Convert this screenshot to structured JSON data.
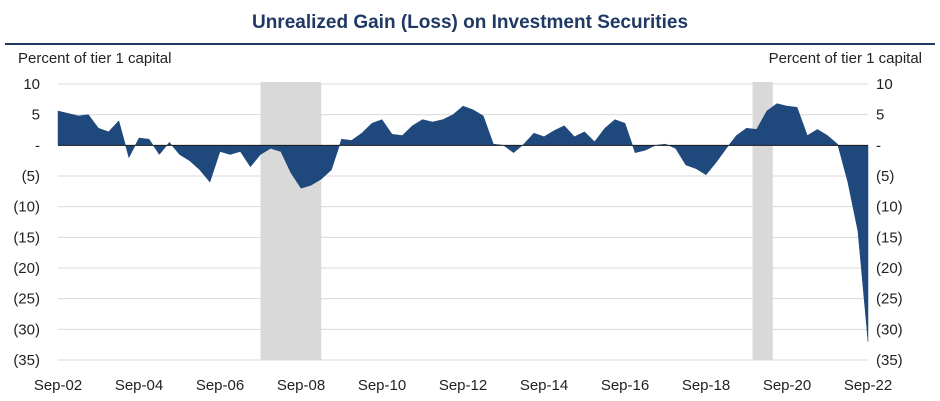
{
  "chart_data": {
    "type": "area",
    "title": "Unrealized Gain (Loss) on Investment Securities",
    "ylabel_left": "Percent of tier 1 capital",
    "ylabel_right": "Percent of tier 1 capital",
    "ylim": [
      -35,
      10
    ],
    "yticks": [
      10,
      5,
      0,
      -5,
      -10,
      -15,
      -20,
      -25,
      -30,
      -35
    ],
    "ytick_labels": [
      "10",
      "5",
      "-",
      "(5)",
      "(10)",
      "(15)",
      "(20)",
      "(25)",
      "(30)",
      "(35)"
    ],
    "xlim": [
      2002.75,
      2022.75
    ],
    "xticks": [
      2002.75,
      2004.75,
      2006.75,
      2008.75,
      2010.75,
      2012.75,
      2014.75,
      2016.75,
      2018.75,
      2020.75,
      2022.75
    ],
    "xtick_labels": [
      "Sep-02",
      "Sep-04",
      "Sep-06",
      "Sep-08",
      "Sep-10",
      "Sep-12",
      "Sep-14",
      "Sep-16",
      "Sep-18",
      "Sep-20",
      "Sep-22"
    ],
    "recessions": [
      [
        2007.75,
        2009.25
      ],
      [
        2019.9,
        2020.4
      ]
    ],
    "grid": true,
    "colors": {
      "area": "#1f497d",
      "recession": "#d9d9d9",
      "title": "#1f3864",
      "grid": "#d9d9d9"
    },
    "series": [
      {
        "x": [
          2002.75,
          2003.0,
          2003.25,
          2003.5,
          2003.75,
          2004.0,
          2004.25,
          2004.5,
          2004.75,
          2005.0,
          2005.25,
          2005.5,
          2005.75,
          2006.0,
          2006.25,
          2006.5,
          2006.75,
          2007.0,
          2007.25,
          2007.5,
          2007.75,
          2008.0,
          2008.25,
          2008.5,
          2008.75,
          2009.0,
          2009.25,
          2009.5,
          2009.75,
          2010.0,
          2010.25,
          2010.5,
          2010.75,
          2011.0,
          2011.25,
          2011.5,
          2011.75,
          2012.0,
          2012.25,
          2012.5,
          2012.75,
          2013.0,
          2013.25,
          2013.5,
          2013.75,
          2014.0,
          2014.25,
          2014.5,
          2014.75,
          2015.0,
          2015.25,
          2015.5,
          2015.75,
          2016.0,
          2016.25,
          2016.5,
          2016.75,
          2017.0,
          2017.25,
          2017.5,
          2017.75,
          2018.0,
          2018.25,
          2018.5,
          2018.75,
          2019.0,
          2019.25,
          2019.5,
          2019.75,
          2020.0,
          2020.25,
          2020.5,
          2020.75,
          2021.0,
          2021.25,
          2021.5,
          2021.75,
          2022.0,
          2022.25,
          2022.5,
          2022.75
        ],
        "values": [
          5.6,
          5.2,
          4.8,
          5.0,
          2.8,
          2.2,
          4.0,
          -2.0,
          1.2,
          1.0,
          -1.5,
          0.5,
          -1.5,
          -2.5,
          -4.0,
          -6.0,
          -1.0,
          -1.5,
          -1.0,
          -3.5,
          -1.5,
          -0.5,
          -1.0,
          -4.5,
          -7.0,
          -6.5,
          -5.5,
          -4.0,
          1.0,
          0.8,
          2.0,
          3.6,
          4.2,
          1.8,
          1.6,
          3.2,
          4.2,
          3.8,
          4.2,
          5.0,
          6.4,
          5.8,
          4.8,
          0.2,
          0.0,
          -1.2,
          0.2,
          2.0,
          1.4,
          2.4,
          3.2,
          1.4,
          2.2,
          0.6,
          2.8,
          4.2,
          3.6,
          -1.2,
          -0.8,
          0.0,
          0.2,
          -0.5,
          -3.2,
          -3.8,
          -4.8,
          -2.8,
          -0.5,
          1.6,
          2.8,
          2.6,
          5.6,
          6.8,
          6.4,
          6.2,
          1.6,
          2.6,
          1.6,
          0.2,
          -6.0,
          -14.0,
          -32.0
        ]
      }
    ]
  }
}
